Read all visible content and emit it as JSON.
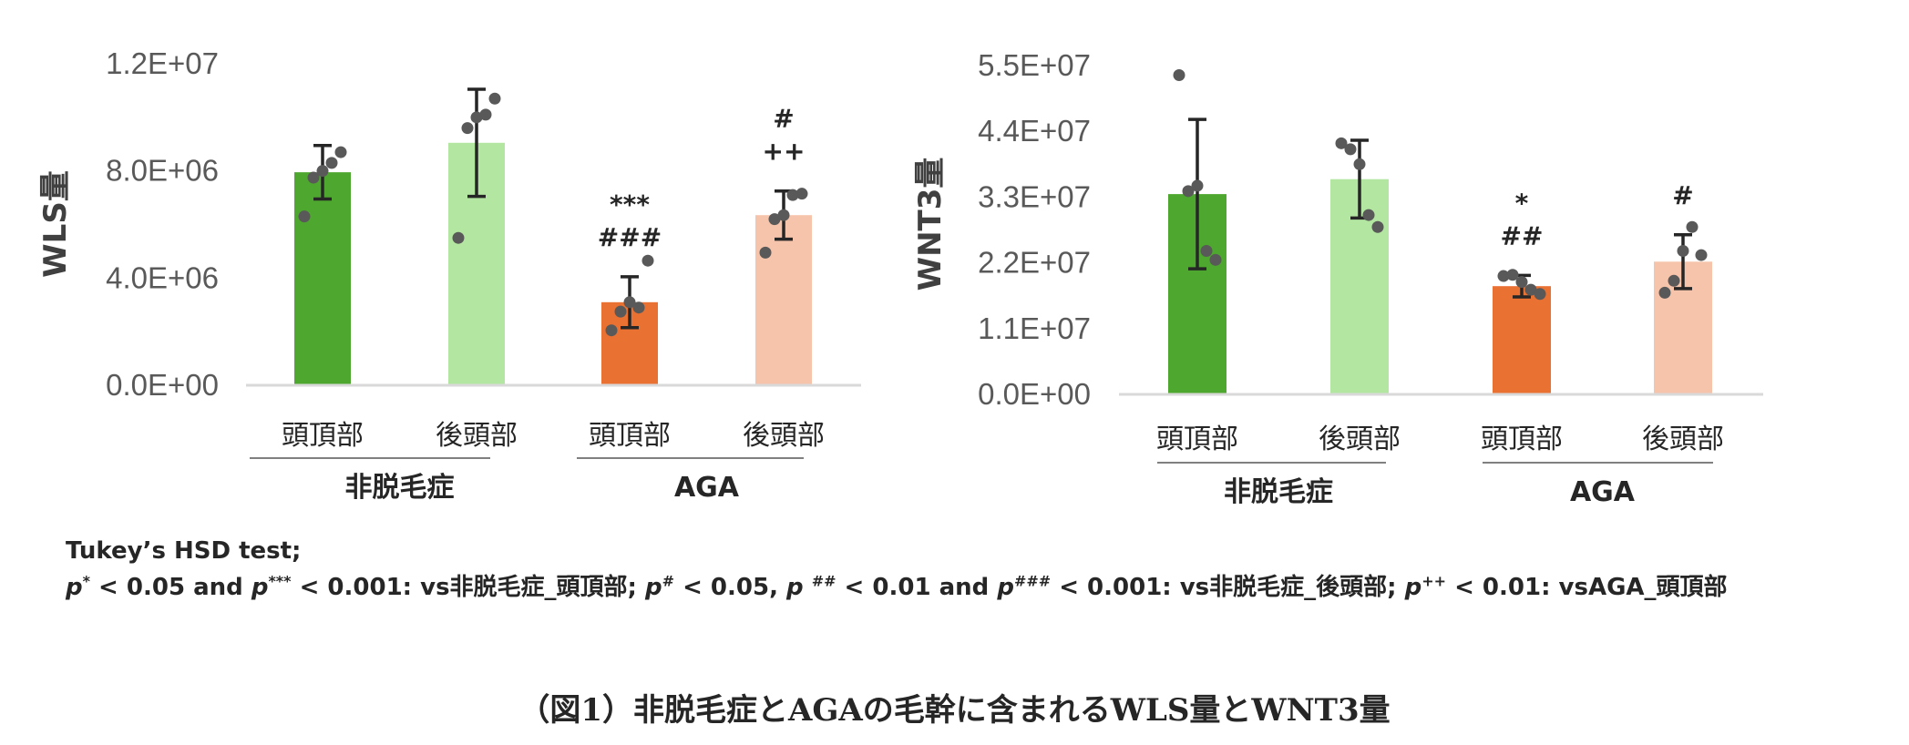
{
  "chart_data": [
    {
      "type": "bar",
      "ylabel": "WLS量",
      "ylim": [
        0,
        12000000
      ],
      "yticks": [
        "0.0E+00",
        "4.0E+06",
        "8.0E+06",
        "1.2E+07"
      ],
      "categories": [
        "頭頂部",
        "後頭部",
        "頭頂部",
        "後頭部"
      ],
      "groups": [
        {
          "label": "非脱毛症",
          "span": [
            0,
            1
          ]
        },
        {
          "label": "AGA",
          "span": [
            2,
            3
          ]
        }
      ],
      "values": [
        7950000,
        9050000,
        3100000,
        6350000
      ],
      "errors": [
        1000000,
        2000000,
        950000,
        900000
      ],
      "colors": [
        "#4ea72e",
        "#b3e6a1",
        "#e97132",
        "#f6c4ab"
      ],
      "points": [
        [
          6300000,
          7750000,
          8000000,
          8300000,
          8700000
        ],
        [
          5500000,
          9600000,
          10000000,
          10100000,
          10700000
        ],
        [
          2050000,
          2750000,
          3100000,
          2900000,
          4650000
        ],
        [
          4950000,
          6200000,
          6350000,
          7100000,
          7150000
        ]
      ],
      "significance": [
        [],
        [],
        [
          "***",
          "###"
        ],
        [
          "#",
          "++"
        ]
      ]
    },
    {
      "type": "bar",
      "ylabel": "WNT3量",
      "ylim": [
        0,
        55000000
      ],
      "yticks": [
        "0.0E+00",
        "1.1E+07",
        "2.2E+07",
        "3.3E+07",
        "4.4E+07",
        "5.5E+07"
      ],
      "categories": [
        "頭頂部",
        "後頭部",
        "頭頂部",
        "後頭部"
      ],
      "groups": [
        {
          "label": "非脱毛症",
          "span": [
            0,
            1
          ]
        },
        {
          "label": "AGA",
          "span": [
            2,
            3
          ]
        }
      ],
      "values": [
        33500000,
        36000000,
        18100000,
        22200000
      ],
      "errors": [
        12500000,
        6500000,
        1800000,
        4500000
      ],
      "colors": [
        "#4ea72e",
        "#b3e6a1",
        "#e97132",
        "#f6c4ab"
      ],
      "points": [
        [
          53400000,
          34000000,
          34900000,
          24000000,
          22500000
        ],
        [
          42000000,
          41000000,
          38500000,
          30000000,
          28000000
        ],
        [
          19800000,
          20000000,
          18800000,
          17500000,
          16800000
        ],
        [
          17000000,
          19000000,
          24000000,
          28000000,
          23300000
        ]
      ],
      "significance": [
        [],
        [],
        [
          "*",
          "##"
        ],
        [
          "#"
        ]
      ]
    }
  ],
  "note": {
    "line1": "Tukey’s HSD test;",
    "p": "p",
    "a1": "*",
    "t1": " < 0.05 and ",
    "a2": "***",
    "t2": " < 0.001: vs非脱毛症_頭頂部; ",
    "a3": "#",
    "t3": " < 0.05, ",
    "a4": "##",
    "t4": " < 0.01 and ",
    "a5": "###",
    "t5": " < 0.001: vs非脱毛症_後頭部; ",
    "a6": "++",
    "t6": " < 0.01: vsAGA_頭頂部"
  },
  "caption": "（図1）非脱毛症とAGAの毛幹に含まれるWLS量とWNT3量"
}
